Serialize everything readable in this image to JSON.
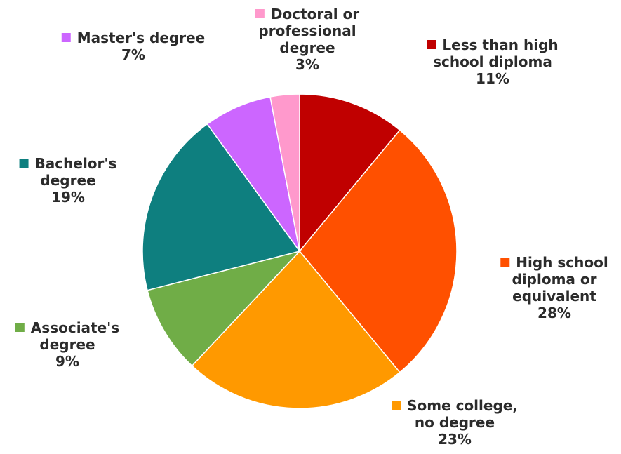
{
  "chart_data": {
    "type": "pie",
    "title": "",
    "slices": [
      {
        "lines": [
          "Less than high",
          "school diploma"
        ],
        "value": 11,
        "pct_label": "11%",
        "color": "#C00000"
      },
      {
        "lines": [
          "High school",
          "diploma or",
          "equivalent"
        ],
        "value": 28,
        "pct_label": "28%",
        "color": "#FF5000"
      },
      {
        "lines": [
          "Some college,",
          "no degree"
        ],
        "value": 23,
        "pct_label": "23%",
        "color": "#FF9900"
      },
      {
        "lines": [
          "Associate's",
          "degree"
        ],
        "value": 9,
        "pct_label": "9%",
        "color": "#70AD47"
      },
      {
        "lines": [
          "Bachelor's",
          "degree"
        ],
        "value": 19,
        "pct_label": "19%",
        "color": "#0E7F7F"
      },
      {
        "lines": [
          "Master's degree"
        ],
        "value": 7,
        "pct_label": "7%",
        "color": "#CC66FF"
      },
      {
        "lines": [
          "Doctoral or",
          "professional",
          "degree"
        ],
        "value": 3,
        "pct_label": "3%",
        "color": "#FF99CC"
      }
    ],
    "start_angle_deg": 0,
    "direction": "clockwise",
    "legend": "labels-outside"
  }
}
